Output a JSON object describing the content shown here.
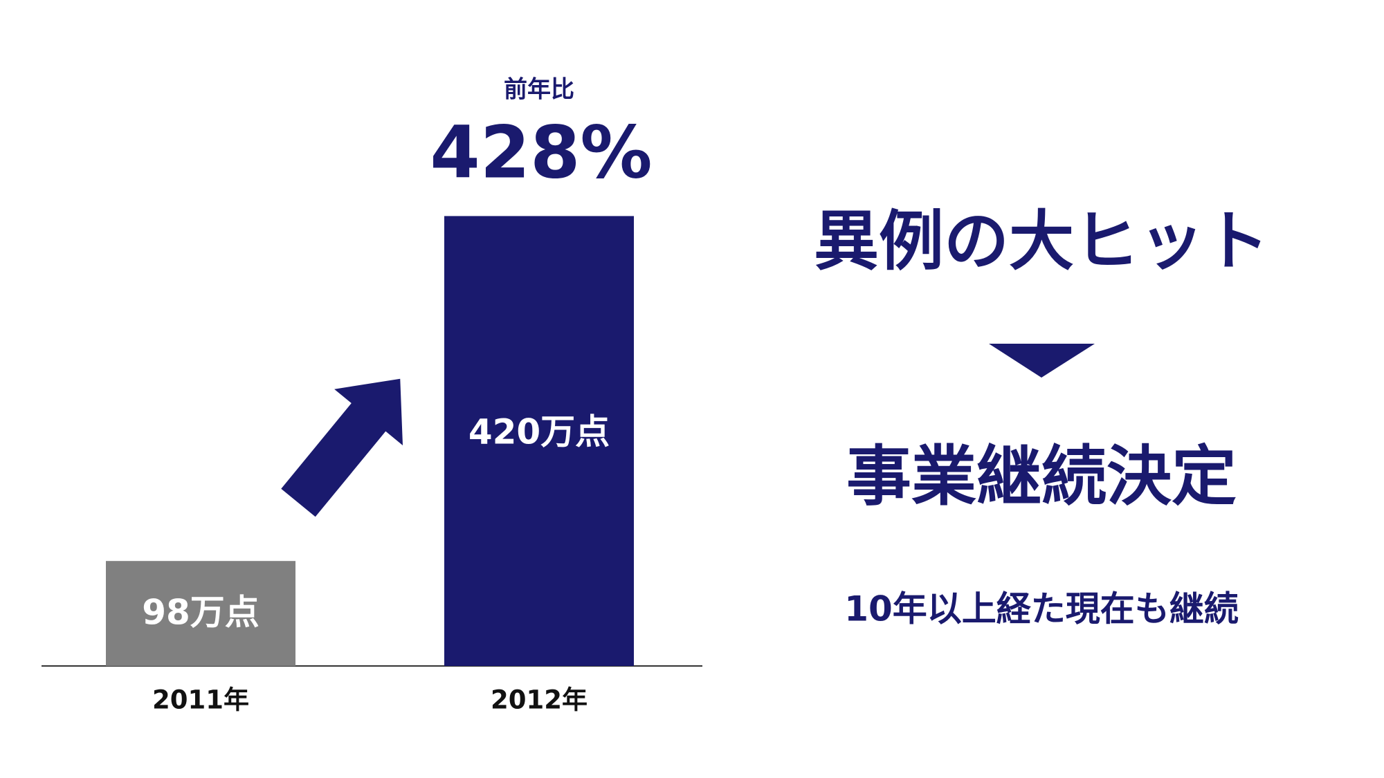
{
  "chart_data": {
    "type": "bar",
    "categories": [
      "2011年",
      "2012年"
    ],
    "values": [
      98,
      420
    ],
    "value_labels": [
      "98万点",
      "420万点"
    ],
    "colors": [
      "#808080",
      "#1a1a6e"
    ],
    "annotation": {
      "label": "前年比",
      "text": "428%"
    }
  },
  "message": {
    "headline": "異例の大ヒット",
    "decision": "事業継続決定",
    "note": "10年以上経た現在も継続"
  }
}
